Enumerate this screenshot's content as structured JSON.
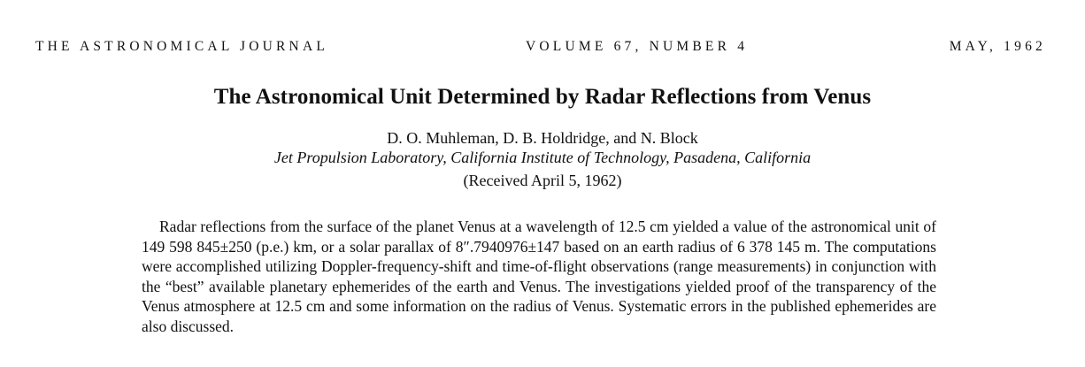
{
  "running_head": {
    "journal": "THE ASTRONOMICAL JOURNAL",
    "volume": "VOLUME 67, NUMBER 4",
    "date": "MAY, 1962"
  },
  "article": {
    "title": "The Astronomical Unit Determined by Radar Reflections from Venus",
    "authors": "D. O. Muhleman, D. B. Holdridge, and N. Block",
    "affiliation": "Jet Propulsion Laboratory, California Institute of Technology, Pasadena, California",
    "received": "(Received April 5, 1962)",
    "abstract": "Radar reflections from the surface of the planet Venus at a wavelength of 12.5 cm yielded a value of the astronomical unit of 149 598 845±250 (p.e.) km, or a solar parallax of 8″.7940976±147 based on an earth radius of 6 378 145 m. The computations were accomplished utilizing Doppler-frequency-shift and time-of-flight observations (range measurements) in conjunction with the “best” available planetary ephemerides of the earth and Venus. The investigations yielded proof of the transparency of the Venus atmosphere at 12.5 cm and some information on the radius of Venus. Systematic errors in the published ephemerides are also discussed."
  }
}
